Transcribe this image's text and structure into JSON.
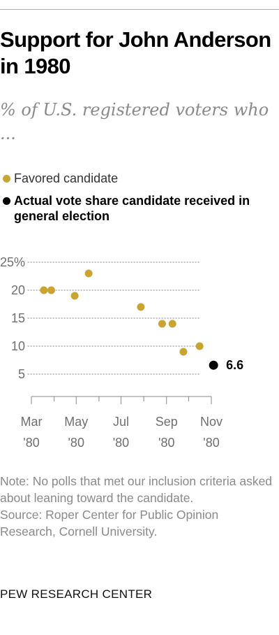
{
  "header": {
    "title": "Support for John Anderson in 1980",
    "subtitle": "% of U.S. registered voters who ..."
  },
  "legend": {
    "favored": "Favored candidate",
    "actual": "Actual vote share candidate received in general election"
  },
  "colors": {
    "favored": "#c9a530",
    "actual": "#000000",
    "grid": "#a0a0a0",
    "axis_text": "#6f6f6f"
  },
  "chart_data": {
    "type": "scatter",
    "y_ticks": [
      "25%",
      "20",
      "15",
      "10",
      "5"
    ],
    "y_tick_values": [
      25,
      20,
      15,
      10,
      5
    ],
    "x_tick_labels": [
      {
        "month": "Mar",
        "year": "'80"
      },
      {
        "month": "May",
        "year": "'80"
      },
      {
        "month": "Jul",
        "year": "'80"
      },
      {
        "month": "Sep",
        "year": "'80"
      },
      {
        "month": "Nov",
        "year": "'80"
      }
    ],
    "x_tick_dates": [
      "1980-03-01",
      "1980-05-01",
      "1980-07-01",
      "1980-09-01",
      "1980-11-01"
    ],
    "x_minor_tick_dates": [
      "1980-04-01",
      "1980-06-01",
      "1980-08-01",
      "1980-10-01"
    ],
    "xlim": [
      "1980-03-01",
      "1980-11-01"
    ],
    "ylim": [
      0,
      25
    ],
    "grid": true,
    "series": [
      {
        "name": "Favored candidate",
        "points": [
          {
            "x": "1980-03-18",
            "y": 20
          },
          {
            "x": "1980-03-28",
            "y": 20
          },
          {
            "x": "1980-04-29",
            "y": 19
          },
          {
            "x": "1980-05-18",
            "y": 23
          },
          {
            "x": "1980-07-28",
            "y": 17
          },
          {
            "x": "1980-08-26",
            "y": 14
          },
          {
            "x": "1980-09-09",
            "y": 14
          },
          {
            "x": "1980-09-24",
            "y": 9
          },
          {
            "x": "1980-10-16",
            "y": 10
          }
        ]
      },
      {
        "name": "Actual vote share candidate received in general election",
        "points": [
          {
            "x": "1980-11-04",
            "y": 6.6,
            "label": "6.6"
          }
        ]
      }
    ]
  },
  "note": {
    "note_text": "Note: No polls that met our inclusion criteria asked about leaning toward the candidate.",
    "source_text": "Source: Roper Center for Public Opinion Research, Cornell University."
  },
  "footer": {
    "brand": "PEW RESEARCH CENTER"
  }
}
